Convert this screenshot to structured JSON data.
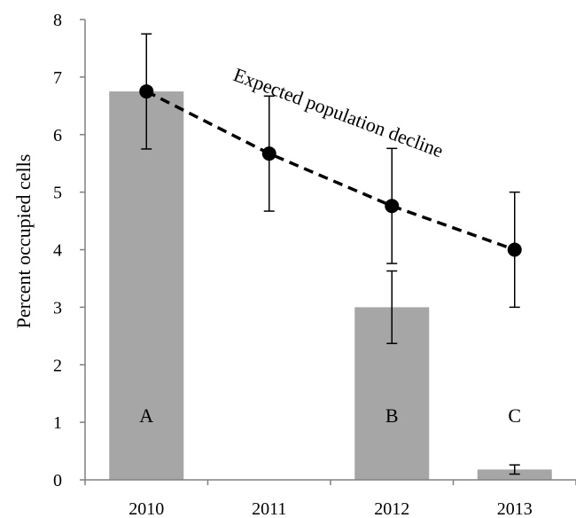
{
  "chart_data": {
    "type": "bar",
    "title": "",
    "xlabel": "",
    "ylabel": "Percent occupied cells",
    "ylim": [
      0,
      8
    ],
    "yticks": [
      "0",
      "1",
      "2",
      "3",
      "4",
      "5",
      "6",
      "7",
      "8"
    ],
    "grid": false,
    "categories": [
      "2010",
      "2011",
      "2012",
      "2013"
    ],
    "bars": {
      "color": "#a6a6a6",
      "values": [
        6.75,
        null,
        3.0,
        0.18
      ],
      "error": [
        null,
        null,
        0.63,
        0.08
      ],
      "letters": [
        "A",
        "",
        "B",
        "C"
      ]
    },
    "expected": {
      "label": "Expected population decline",
      "style": "dashed",
      "marker": "filled-circle",
      "color": "#000000",
      "values": [
        6.75,
        5.67,
        4.76,
        4.0
      ],
      "error": [
        1.0,
        1.0,
        1.0,
        1.0
      ]
    }
  }
}
